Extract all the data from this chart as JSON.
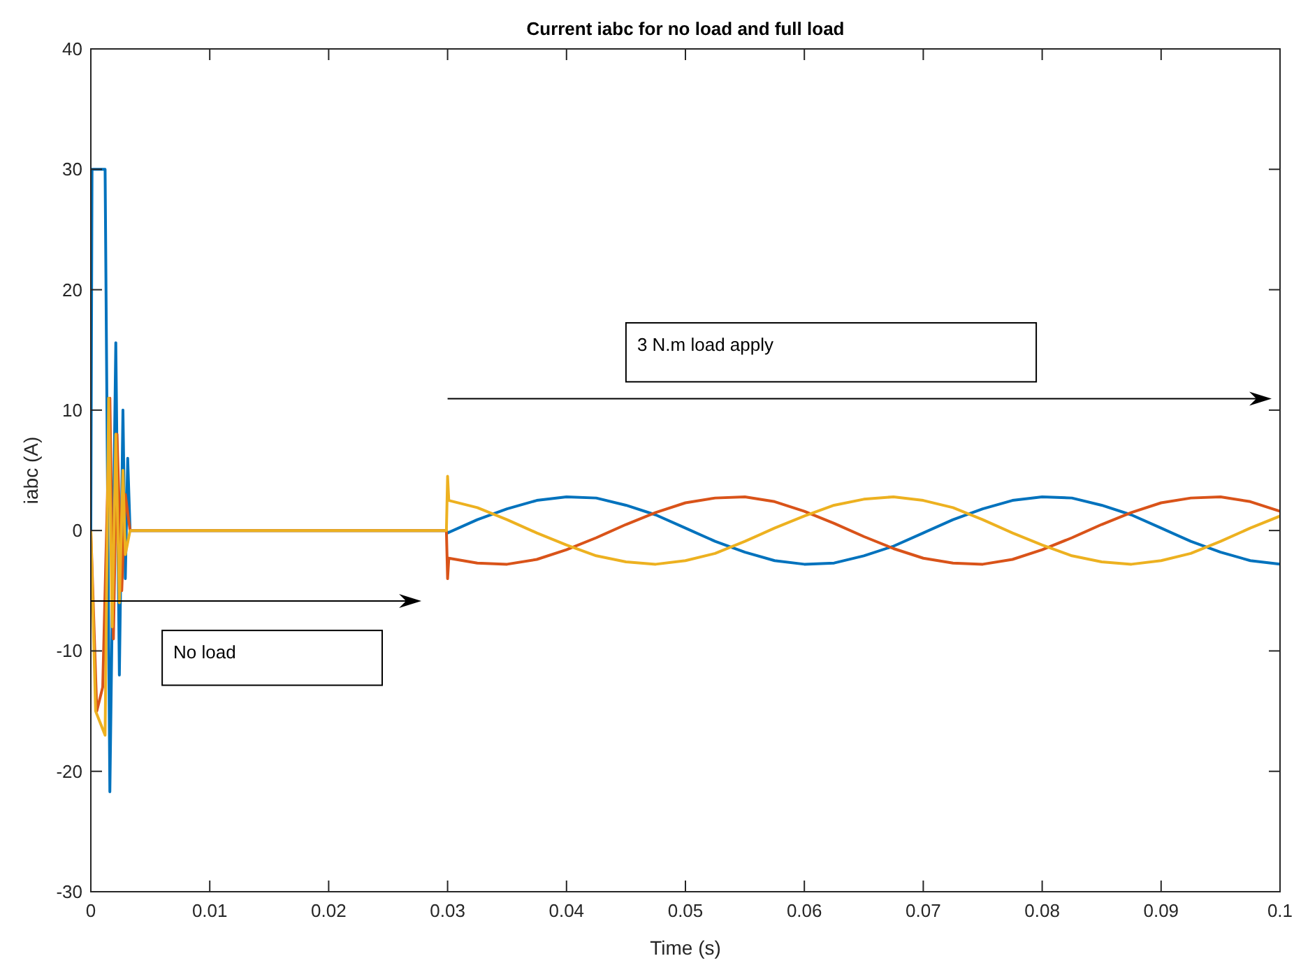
{
  "chart_data": {
    "type": "line",
    "title": "Current iabc for no load and full load",
    "xlabel": "Time (s)",
    "ylabel": "iabc (A)",
    "xlim": [
      0,
      0.1
    ],
    "ylim": [
      -30,
      40
    ],
    "xticks": [
      0,
      0.01,
      0.02,
      0.03,
      0.04,
      0.05,
      0.06,
      0.07,
      0.08,
      0.09,
      0.1
    ],
    "yticks": [
      -30,
      -20,
      -10,
      0,
      10,
      20,
      30,
      40
    ],
    "grid": false,
    "marker": "none",
    "line_style": "solid",
    "annotations": [
      "No load",
      "3 N.m load apply"
    ],
    "series": [
      {
        "color": "#0072bd",
        "x": [
          0,
          0.0001,
          0.0012,
          0.0016,
          0.0021,
          0.0024,
          0.0027,
          0.0029,
          0.0031,
          0.0033,
          0.0299,
          0.03,
          0.0325,
          0.035,
          0.0375,
          0.04,
          0.0425,
          0.045,
          0.0475,
          0.05,
          0.0525,
          0.055,
          0.0575,
          0.06,
          0.0625,
          0.065,
          0.0675,
          0.07,
          0.0725,
          0.075,
          0.0775,
          0.08,
          0.0825,
          0.085,
          0.0875,
          0.09,
          0.0925,
          0.095,
          0.0975,
          0.1
        ],
        "values": [
          0,
          30,
          30,
          -21.7,
          15.6,
          -12,
          10,
          -4,
          6,
          0,
          0,
          -0.2,
          0.9,
          1.8,
          2.5,
          2.8,
          2.7,
          2.1,
          1.3,
          0.2,
          -0.9,
          -1.8,
          -2.5,
          -2.8,
          -2.7,
          -2.1,
          -1.3,
          -0.2,
          0.9,
          1.8,
          2.5,
          2.8,
          2.7,
          2.1,
          1.3,
          0.2,
          -0.9,
          -1.8,
          -2.5,
          -2.8
        ]
      },
      {
        "color": "#d95319",
        "x": [
          0,
          0.0005,
          0.001,
          0.0016,
          0.0019,
          0.0022,
          0.0026,
          0.0029,
          0.0033,
          0.0299,
          0.03,
          0.0301,
          0.0325,
          0.035,
          0.0375,
          0.04,
          0.0425,
          0.045,
          0.0475,
          0.05,
          0.0525,
          0.055,
          0.0575,
          0.06,
          0.0625,
          0.065,
          0.0675,
          0.07,
          0.0725,
          0.075,
          0.0775,
          0.08,
          0.0825,
          0.085,
          0.0875,
          0.09,
          0.0925,
          0.095,
          0.0975,
          0.1
        ],
        "values": [
          0,
          -15,
          -13,
          11,
          -9,
          8,
          -5,
          3,
          0,
          0,
          -4,
          -2.3,
          -2.7,
          -2.8,
          -2.4,
          -1.6,
          -0.6,
          0.5,
          1.5,
          2.3,
          2.7,
          2.8,
          2.4,
          1.6,
          0.6,
          -0.5,
          -1.5,
          -2.3,
          -2.7,
          -2.8,
          -2.4,
          -1.6,
          -0.6,
          0.5,
          1.5,
          2.3,
          2.7,
          2.8,
          2.4,
          1.6
        ]
      },
      {
        "color": "#edb120",
        "x": [
          0,
          0.0004,
          0.0012,
          0.0015,
          0.0018,
          0.0021,
          0.0024,
          0.0027,
          0.0029,
          0.0033,
          0.0299,
          0.03,
          0.0301,
          0.0325,
          0.035,
          0.0375,
          0.04,
          0.0425,
          0.045,
          0.0475,
          0.05,
          0.0525,
          0.055,
          0.0575,
          0.06,
          0.0625,
          0.065,
          0.0675,
          0.07,
          0.0725,
          0.075,
          0.0775,
          0.08,
          0.0825,
          0.085,
          0.0875,
          0.09,
          0.0925,
          0.095,
          0.0975,
          0.1
        ],
        "values": [
          0,
          -15,
          -17,
          11,
          -8,
          8,
          -6,
          5,
          -2,
          0,
          0,
          4.5,
          2.5,
          1.9,
          0.9,
          -0.2,
          -1.2,
          -2.1,
          -2.6,
          -2.8,
          -2.5,
          -1.9,
          -0.9,
          0.2,
          1.2,
          2.1,
          2.6,
          2.8,
          2.5,
          1.9,
          0.9,
          -0.2,
          -1.2,
          -2.1,
          -2.6,
          -2.8,
          -2.5,
          -1.9,
          -0.9,
          0.2,
          1.2
        ]
      }
    ]
  }
}
